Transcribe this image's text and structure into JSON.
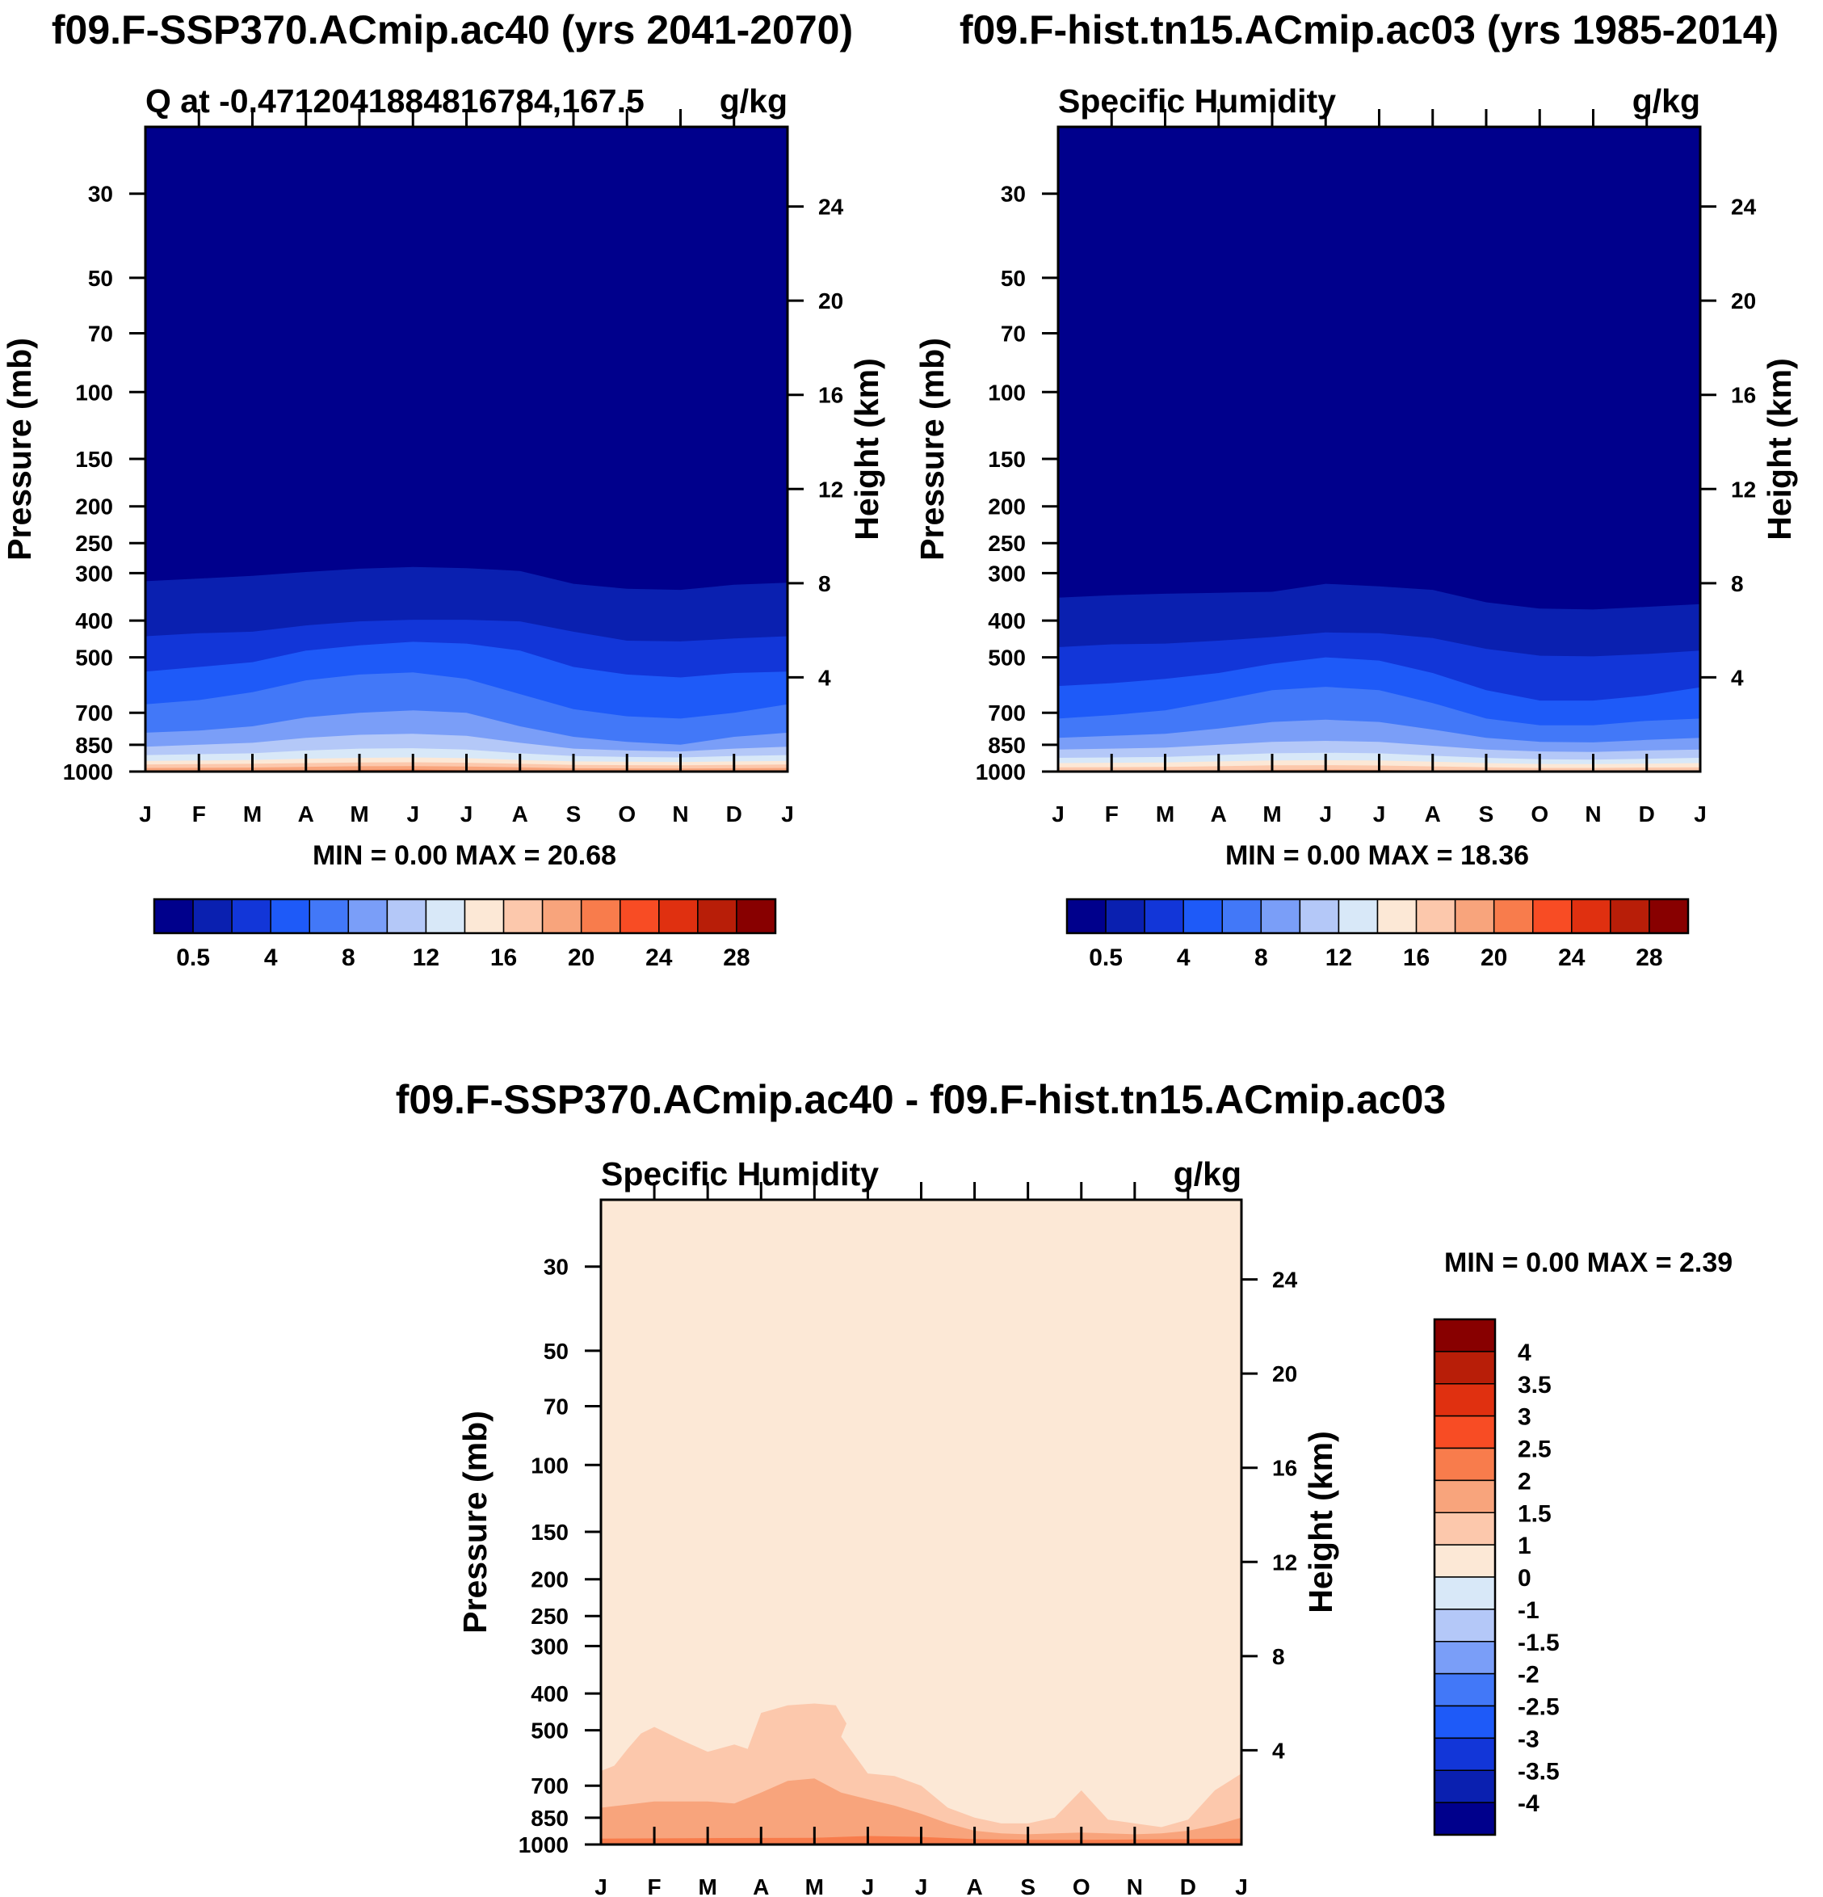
{
  "chart_data": [
    {
      "type": "heatmap",
      "panel_title": "f09.F-SSP370.ACmip.ac40 (yrs 2041-2070)",
      "left_string": "Q at -0.4712041884816784,167.5",
      "right_string": "g/kg",
      "ylabel": "Pressure (mb)",
      "y2label": "Height (km)",
      "x_ticks": [
        "J",
        "F",
        "M",
        "A",
        "M",
        "J",
        "J",
        "A",
        "S",
        "O",
        "N",
        "D",
        "J"
      ],
      "p_ticks": [
        "30",
        "50",
        "70",
        "100",
        "150",
        "200",
        "250",
        "300",
        "400",
        "500",
        "700",
        "850",
        "1000"
      ],
      "p_values": [
        30,
        50,
        70,
        100,
        150,
        200,
        250,
        300,
        400,
        500,
        700,
        850,
        1000
      ],
      "ylim": [
        20,
        1000
      ],
      "height_ticks": [
        "4",
        "8",
        "12",
        "16",
        "20",
        "24"
      ],
      "height_values": [
        4,
        8,
        12,
        16,
        20,
        24
      ],
      "minmax_text": "MIN =    0.00 MAX =  20.68",
      "levels": [
        0.5,
        2,
        4,
        6,
        8,
        10,
        12,
        14,
        16,
        18,
        20,
        22,
        24,
        26,
        28
      ],
      "colorbar_labels": [
        "0.5",
        "4",
        "8",
        "12",
        "16",
        "20",
        "24",
        "28"
      ],
      "colorbar_label_levels": [
        0.5,
        4,
        8,
        12,
        16,
        20,
        24,
        28
      ],
      "contours": [
        {
          "level": 0.5,
          "p": [
            315,
            310,
            305,
            298,
            292,
            289,
            291,
            296,
            320,
            330,
            332,
            322,
            318
          ]
        },
        {
          "level": 2,
          "p": [
            440,
            432,
            428,
            412,
            402,
            398,
            398,
            402,
            428,
            452,
            454,
            446,
            440
          ]
        },
        {
          "level": 4,
          "p": [
            545,
            530,
            515,
            480,
            465,
            455,
            460,
            480,
            530,
            555,
            565,
            550,
            545
          ]
        },
        {
          "level": 6,
          "p": [
            665,
            648,
            618,
            575,
            555,
            548,
            570,
            625,
            685,
            715,
            725,
            700,
            665
          ]
        },
        {
          "level": 8,
          "p": [
            790,
            780,
            760,
            720,
            700,
            690,
            700,
            760,
            810,
            835,
            850,
            810,
            790
          ]
        },
        {
          "level": 10,
          "p": [
            860,
            850,
            840,
            815,
            800,
            795,
            805,
            840,
            870,
            880,
            885,
            870,
            860
          ]
        },
        {
          "level": 12,
          "p": [
            905,
            900,
            895,
            880,
            870,
            868,
            875,
            895,
            910,
            915,
            918,
            910,
            905
          ]
        },
        {
          "level": 14,
          "p": [
            938,
            935,
            932,
            925,
            920,
            918,
            922,
            932,
            940,
            942,
            944,
            940,
            938
          ]
        },
        {
          "level": 16,
          "p": [
            958,
            956,
            954,
            950,
            946,
            945,
            948,
            954,
            960,
            962,
            963,
            960,
            958
          ]
        },
        {
          "level": 18,
          "p": [
            978,
            977,
            976,
            972,
            968,
            967,
            970,
            975,
            980,
            981,
            982,
            980,
            978
          ]
        },
        {
          "level": 20,
          "p": [
            999,
            999,
            999,
            995,
            990,
            988,
            992,
            998,
            999,
            999,
            999,
            999,
            999
          ]
        }
      ]
    },
    {
      "type": "heatmap",
      "panel_title": "f09.F-hist.tn15.ACmip.ac03 (yrs 1985-2014)",
      "left_string": "Specific Humidity",
      "right_string": "g/kg",
      "ylabel": "Pressure (mb)",
      "y2label": "Height (km)",
      "x_ticks": [
        "J",
        "F",
        "M",
        "A",
        "M",
        "J",
        "J",
        "A",
        "S",
        "O",
        "N",
        "D",
        "J"
      ],
      "p_ticks": [
        "30",
        "50",
        "70",
        "100",
        "150",
        "200",
        "250",
        "300",
        "400",
        "500",
        "700",
        "850",
        "1000"
      ],
      "p_values": [
        30,
        50,
        70,
        100,
        150,
        200,
        250,
        300,
        400,
        500,
        700,
        850,
        1000
      ],
      "ylim": [
        20,
        1000
      ],
      "height_ticks": [
        "4",
        "8",
        "12",
        "16",
        "20",
        "24"
      ],
      "height_values": [
        4,
        8,
        12,
        16,
        20,
        24
      ],
      "minmax_text": "MIN =    0.00 MAX =  18.36",
      "levels": [
        0.5,
        2,
        4,
        6,
        8,
        10,
        12,
        14,
        16,
        18,
        20,
        22,
        24,
        26,
        28
      ],
      "colorbar_labels": [
        "0.5",
        "4",
        "8",
        "12",
        "16",
        "20",
        "24",
        "28"
      ],
      "colorbar_label_levels": [
        0.5,
        4,
        8,
        12,
        16,
        20,
        24,
        28
      ],
      "contours": [
        {
          "level": 0.5,
          "p": [
            348,
            343,
            340,
            338,
            336,
            320,
            325,
            332,
            358,
            372,
            374,
            368,
            362
          ]
        },
        {
          "level": 2,
          "p": [
            470,
            462,
            460,
            452,
            442,
            430,
            432,
            445,
            475,
            495,
            497,
            490,
            480
          ]
        },
        {
          "level": 4,
          "p": [
            595,
            585,
            570,
            550,
            520,
            500,
            510,
            550,
            610,
            650,
            650,
            630,
            600
          ]
        },
        {
          "level": 6,
          "p": [
            725,
            710,
            690,
            650,
            610,
            598,
            610,
            660,
            725,
            755,
            755,
            735,
            725
          ]
        },
        {
          "level": 8,
          "p": [
            815,
            805,
            795,
            770,
            740,
            730,
            740,
            775,
            815,
            835,
            838,
            825,
            815
          ]
        },
        {
          "level": 10,
          "p": [
            875,
            870,
            865,
            850,
            835,
            830,
            835,
            855,
            875,
            885,
            888,
            880,
            875
          ]
        },
        {
          "level": 12,
          "p": [
            920,
            918,
            915,
            905,
            895,
            892,
            895,
            908,
            920,
            928,
            930,
            925,
            920
          ]
        },
        {
          "level": 14,
          "p": [
            950,
            948,
            946,
            940,
            935,
            933,
            935,
            942,
            950,
            955,
            956,
            953,
            950
          ]
        },
        {
          "level": 16,
          "p": [
            975,
            974,
            972,
            968,
            963,
            962,
            964,
            969,
            975,
            978,
            978,
            976,
            975
          ]
        },
        {
          "level": 18,
          "p": [
            999,
            999,
            999,
            995,
            990,
            988,
            990,
            995,
            999,
            999,
            999,
            999,
            999
          ]
        }
      ]
    },
    {
      "type": "heatmap",
      "panel_title": "f09.F-SSP370.ACmip.ac40 - f09.F-hist.tn15.ACmip.ac03",
      "left_string": "Specific Humidity",
      "right_string": "g/kg",
      "ylabel": "Pressure (mb)",
      "y2label": "Height (km)",
      "x_ticks": [
        "J",
        "F",
        "M",
        "A",
        "M",
        "J",
        "J",
        "A",
        "S",
        "O",
        "N",
        "D",
        "J"
      ],
      "p_ticks": [
        "30",
        "50",
        "70",
        "100",
        "150",
        "200",
        "250",
        "300",
        "400",
        "500",
        "700",
        "850",
        "1000"
      ],
      "p_values": [
        30,
        50,
        70,
        100,
        150,
        200,
        250,
        300,
        400,
        500,
        700,
        850,
        1000
      ],
      "ylim": [
        20,
        1000
      ],
      "height_ticks": [
        "4",
        "8",
        "12",
        "16",
        "20",
        "24"
      ],
      "height_values": [
        4,
        8,
        12,
        16,
        20,
        24
      ],
      "minmax_text": "MIN =    0.00 MAX =   2.39",
      "levels": [
        -4,
        -3.5,
        -3,
        -2.5,
        -2,
        -1.5,
        -1,
        0,
        1,
        1.5,
        2,
        2.5,
        3,
        3.5,
        4
      ],
      "colorbar_labels": [
        "4",
        "3.5",
        "3",
        "2.5",
        "2",
        "1.5",
        "1",
        "0",
        "-1",
        "-1.5",
        "-2",
        "-2.5",
        "-3",
        "-3.5",
        "-4"
      ],
      "colorbar_label_levels": [
        4,
        3.5,
        3,
        2.5,
        2,
        1.5,
        1,
        0,
        -1,
        -1.5,
        -2,
        -2.5,
        -3,
        -3.5,
        -4
      ],
      "contours": [
        {
          "level": 1,
          "x": [
            0,
            0.25,
            0.5,
            0.75,
            1,
            1.5,
            2,
            2.5,
            2.75,
            3,
            3.5,
            4,
            4.4,
            4.6,
            4.5,
            5,
            5.5,
            6,
            6.5,
            7,
            7.5,
            8,
            8.5,
            9,
            9.5,
            10,
            10.5,
            11,
            11.5,
            12
          ],
          "p": [
            640,
            620,
            560,
            510,
            490,
            530,
            570,
            545,
            560,
            450,
            430,
            425,
            430,
            480,
            520,
            650,
            660,
            700,
            800,
            850,
            880,
            880,
            850,
            720,
            860,
            880,
            900,
            860,
            720,
            650
          ]
        },
        {
          "level": 1.5,
          "x": [
            0,
            1,
            2,
            2.5,
            3,
            3.5,
            4,
            4.5,
            5,
            5.5,
            6,
            6.5,
            7,
            7.5,
            8,
            8.5,
            9,
            9.5,
            10,
            10.5,
            11,
            11.5,
            12
          ],
          "p": [
            800,
            770,
            770,
            780,
            730,
            680,
            670,
            730,
            760,
            790,
            830,
            880,
            920,
            935,
            940,
            935,
            930,
            935,
            940,
            935,
            920,
            890,
            850
          ]
        },
        {
          "level": 2,
          "x": [
            0,
            2,
            4,
            5,
            6,
            7,
            8,
            9,
            10,
            11,
            12
          ],
          "p": [
            965,
            962,
            960,
            950,
            955,
            968,
            972,
            972,
            970,
            968,
            965
          ]
        }
      ]
    }
  ]
}
